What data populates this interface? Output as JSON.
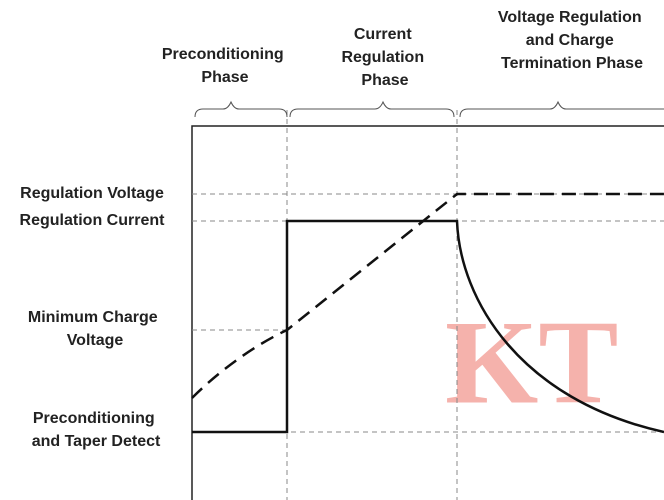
{
  "phases": [
    {
      "lines": [
        "Preconditioning",
        "Phase"
      ]
    },
    {
      "lines": [
        "Current",
        "Regulation",
        "Phase"
      ]
    },
    {
      "lines": [
        "Voltage Regulation",
        "and Charge",
        "Termination Phase"
      ]
    }
  ],
  "levels": [
    {
      "lines": [
        "Regulation Voltage"
      ]
    },
    {
      "lines": [
        "Regulation Current"
      ]
    },
    {
      "lines": [
        "Minimum Charge",
        "Voltage"
      ]
    },
    {
      "lines": [
        "Preconditioning",
        "and Taper Detect"
      ]
    }
  ],
  "watermark": "KT"
}
